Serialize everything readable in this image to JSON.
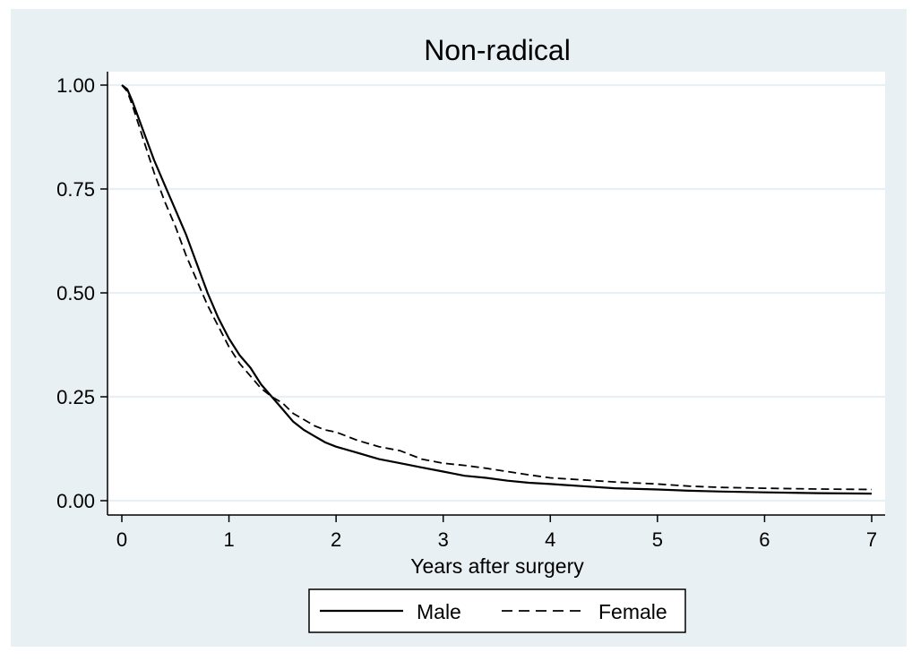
{
  "chart_data": {
    "type": "line",
    "title": "Non-radical",
    "xlabel": "Years after surgery",
    "ylabel": "",
    "xlim": [
      0,
      7
    ],
    "ylim": [
      0,
      1
    ],
    "xticks": [
      0,
      1,
      2,
      3,
      4,
      5,
      6,
      7
    ],
    "xtick_labels": [
      "0",
      "1",
      "2",
      "3",
      "4",
      "5",
      "6",
      "7"
    ],
    "yticks": [
      0,
      0.25,
      0.5,
      0.75,
      1
    ],
    "ytick_labels": [
      "0.00",
      "0.25",
      "0.50",
      "0.75",
      "1.00"
    ],
    "grid": "horizontal",
    "legend": {
      "position": "bottom",
      "entries": [
        "Male",
        "Female"
      ]
    },
    "colors": {
      "outer_background": "#e8f0f3",
      "plot_background": "#ffffff",
      "gridline": "#e8f0f3",
      "line": "#000000"
    },
    "series": [
      {
        "name": "Male",
        "style": "solid",
        "x": [
          0,
          0.05,
          0.1,
          0.2,
          0.3,
          0.4,
          0.5,
          0.6,
          0.7,
          0.8,
          0.9,
          1.0,
          1.1,
          1.2,
          1.3,
          1.4,
          1.5,
          1.6,
          1.7,
          1.8,
          1.9,
          2.0,
          2.2,
          2.4,
          2.6,
          2.8,
          3.0,
          3.2,
          3.4,
          3.6,
          3.8,
          4.0,
          4.3,
          4.6,
          5.0,
          5.3,
          5.6,
          6.0,
          6.5,
          7.0
        ],
        "y": [
          1.0,
          0.99,
          0.96,
          0.89,
          0.82,
          0.76,
          0.7,
          0.64,
          0.57,
          0.5,
          0.44,
          0.39,
          0.35,
          0.32,
          0.28,
          0.25,
          0.22,
          0.19,
          0.17,
          0.155,
          0.14,
          0.13,
          0.115,
          0.1,
          0.09,
          0.08,
          0.07,
          0.06,
          0.055,
          0.048,
          0.043,
          0.04,
          0.035,
          0.03,
          0.027,
          0.024,
          0.022,
          0.02,
          0.018,
          0.017
        ]
      },
      {
        "name": "Female",
        "style": "dashed",
        "x": [
          0,
          0.05,
          0.1,
          0.2,
          0.3,
          0.4,
          0.5,
          0.6,
          0.7,
          0.8,
          0.9,
          1.0,
          1.1,
          1.2,
          1.3,
          1.4,
          1.5,
          1.6,
          1.7,
          1.8,
          1.9,
          2.0,
          2.2,
          2.4,
          2.6,
          2.8,
          3.0,
          3.2,
          3.4,
          3.6,
          3.8,
          4.0,
          4.3,
          4.6,
          5.0,
          5.3,
          5.6,
          6.0,
          6.5,
          7.0
        ],
        "y": [
          1.0,
          0.985,
          0.95,
          0.87,
          0.79,
          0.72,
          0.66,
          0.59,
          0.53,
          0.47,
          0.42,
          0.37,
          0.33,
          0.3,
          0.27,
          0.25,
          0.235,
          0.21,
          0.195,
          0.18,
          0.17,
          0.165,
          0.145,
          0.13,
          0.12,
          0.1,
          0.09,
          0.085,
          0.078,
          0.07,
          0.062,
          0.055,
          0.05,
          0.045,
          0.04,
          0.035,
          0.032,
          0.03,
          0.028,
          0.027
        ]
      }
    ]
  }
}
